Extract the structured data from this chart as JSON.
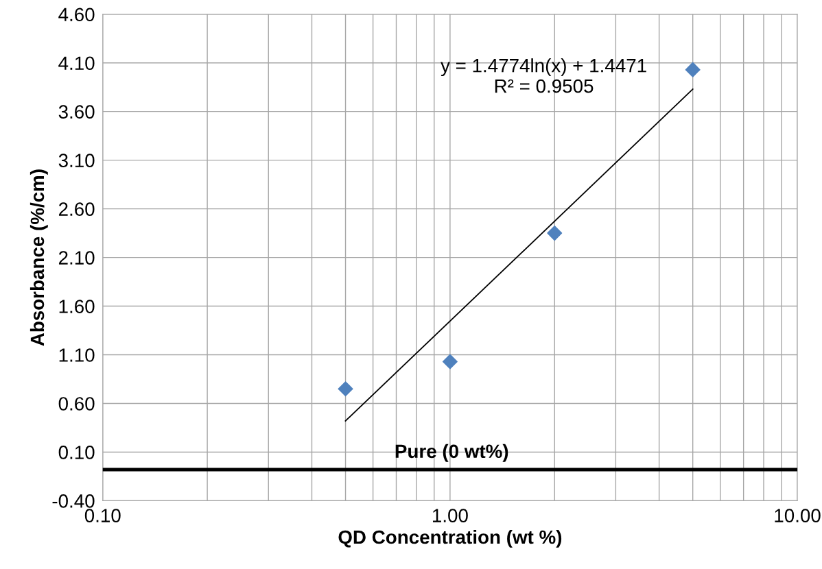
{
  "chart_data": {
    "type": "scatter",
    "xlabel": "QD Concentration (wt %)",
    "ylabel": "Absorbance (%/cm)",
    "log": "x",
    "xlim": [
      0.1,
      10
    ],
    "xticks": [
      {
        "value": 0.1,
        "label": "0.10"
      },
      {
        "value": 1,
        "label": "1.00"
      },
      {
        "value": 10,
        "label": "10.00"
      }
    ],
    "ylim": [
      -0.4,
      4.6
    ],
    "yticks": [
      {
        "value": -0.4,
        "label": "-0.40"
      },
      {
        "value": 0.1,
        "label": "0.10"
      },
      {
        "value": 0.6,
        "label": "0.60"
      },
      {
        "value": 1.1,
        "label": "1.10"
      },
      {
        "value": 1.6,
        "label": "1.60"
      },
      {
        "value": 2.1,
        "label": "2.10"
      },
      {
        "value": 2.6,
        "label": "2.60"
      },
      {
        "value": 3.1,
        "label": "3.10"
      },
      {
        "value": 3.6,
        "label": "3.60"
      },
      {
        "value": 4.1,
        "label": "4.10"
      },
      {
        "value": 4.6,
        "label": "4.60"
      }
    ],
    "grid": true,
    "marker": "diamond",
    "series": [
      {
        "color": "#4f81bd",
        "x": [
          0.5,
          1,
          2,
          5
        ],
        "values": [
          0.75,
          1.03,
          2.35,
          4.03
        ]
      },
      {
        "type": "line",
        "marker": "none",
        "color": "#000000",
        "x": [
          0.5,
          5
        ],
        "values": [
          0.42,
          3.83
        ]
      }
    ],
    "ref_lines": [
      {
        "axis": "y",
        "value": -0.08,
        "label": "Pure (0 wt%)",
        "color": "#000000"
      }
    ],
    "annotations": [
      "y = 1.4774ln(x) + 1.4471\nR² = 0.9505"
    ]
  }
}
